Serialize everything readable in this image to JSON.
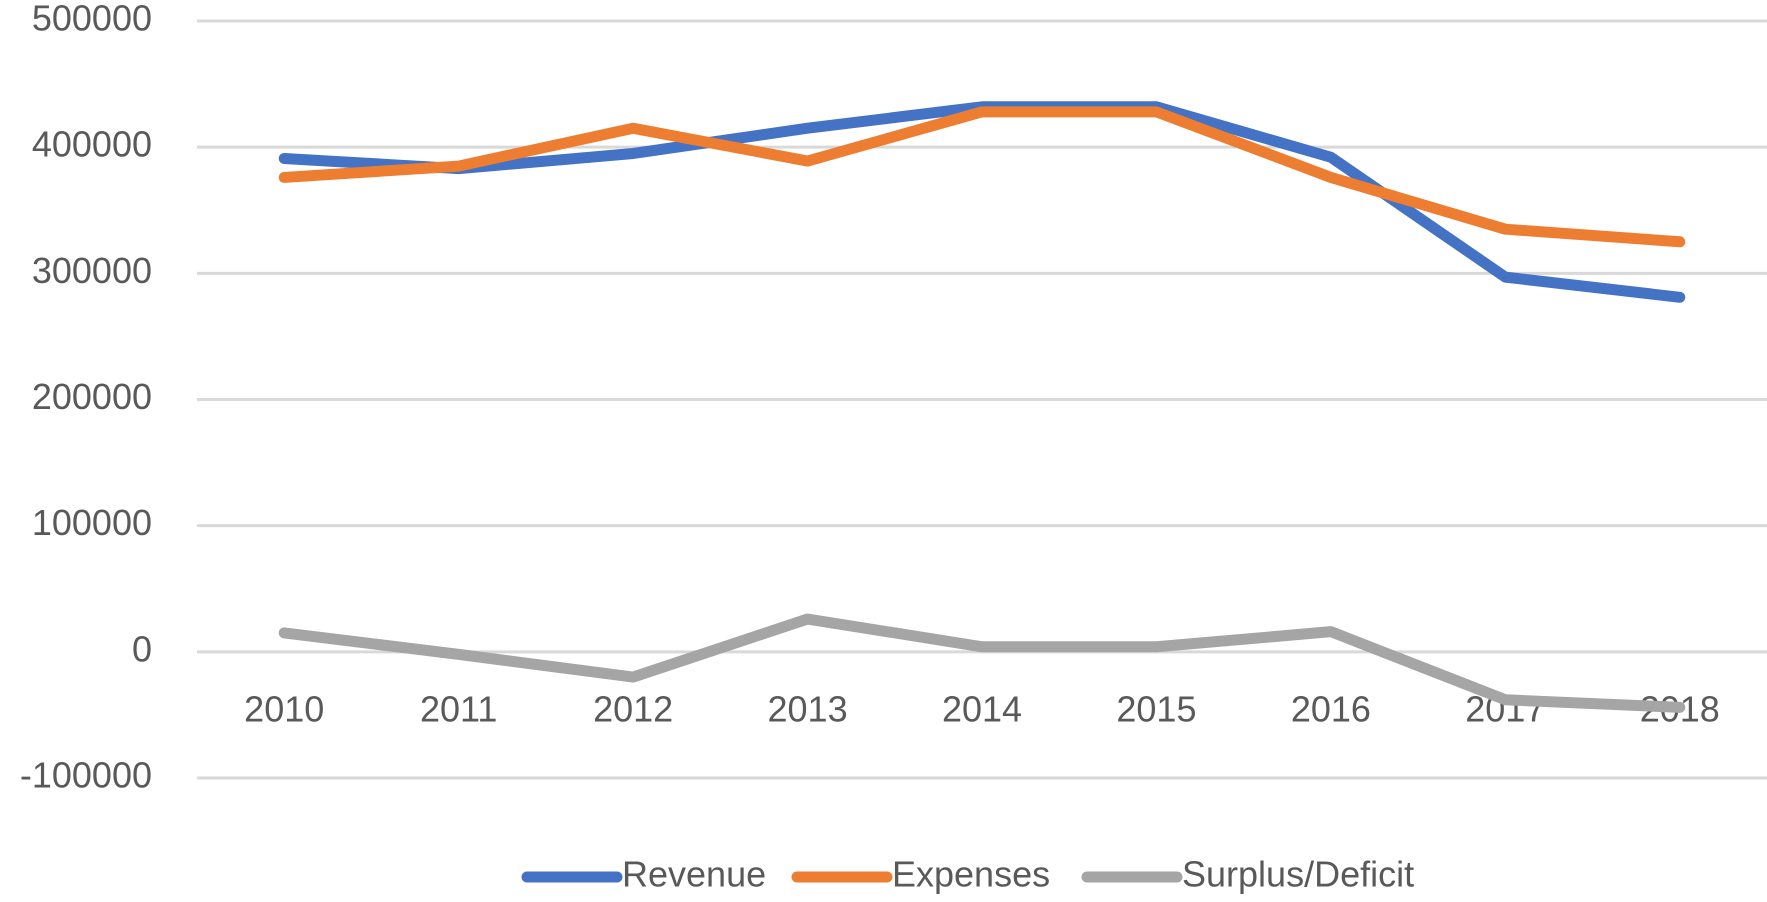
{
  "chart_data": {
    "type": "line",
    "categories": [
      "2010",
      "2011",
      "2012",
      "2013",
      "2014",
      "2015",
      "2016",
      "2017",
      "2018"
    ],
    "series": [
      {
        "name": "Revenue",
        "color": "#4472c4",
        "values": [
          391000,
          383000,
          395000,
          415000,
          432000,
          432000,
          392000,
          297000,
          281000
        ]
      },
      {
        "name": "Expenses",
        "color": "#ed7d31",
        "values": [
          376000,
          385000,
          415000,
          389000,
          428000,
          428000,
          376000,
          335000,
          325000
        ]
      },
      {
        "name": "Surplus/Deficit",
        "color": "#a5a5a5",
        "values": [
          15000,
          -2000,
          -20000,
          26000,
          4000,
          4000,
          16000,
          -38000,
          -44000
        ]
      }
    ],
    "ylim": [
      -100000,
      500000
    ],
    "yticks": [
      -100000,
      0,
      100000,
      200000,
      300000,
      400000,
      500000
    ],
    "grid": true,
    "legend": "bottom"
  }
}
